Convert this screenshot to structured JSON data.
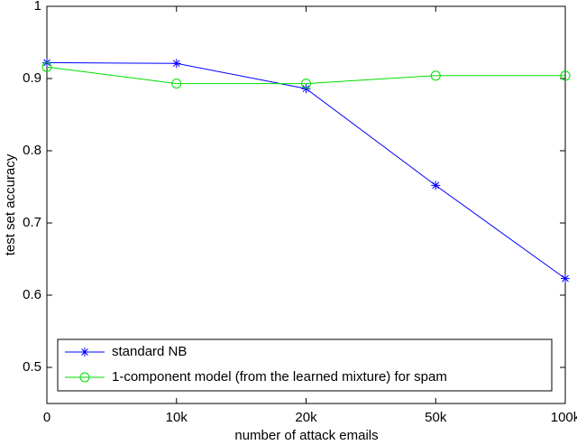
{
  "chart_data": {
    "type": "line",
    "x_label": "number of attack emails",
    "y_label": "test set accuracy",
    "categories": [
      "0",
      "10k",
      "20k",
      "50k",
      "100k"
    ],
    "series": [
      {
        "name": "standard NB",
        "color": "#0000ff",
        "marker": "star",
        "values": [
          0.922,
          0.921,
          0.886,
          0.752,
          0.623
        ]
      },
      {
        "name": "1-component model (from the learned mixture) for spam",
        "color": "#00dd00",
        "marker": "circle",
        "values": [
          0.916,
          0.893,
          0.893,
          0.904,
          0.904
        ]
      }
    ],
    "ylim": [
      0.45,
      1
    ],
    "yticks": [
      0.5,
      0.6,
      0.7,
      0.8,
      0.9,
      1
    ],
    "legend": "lower left"
  }
}
